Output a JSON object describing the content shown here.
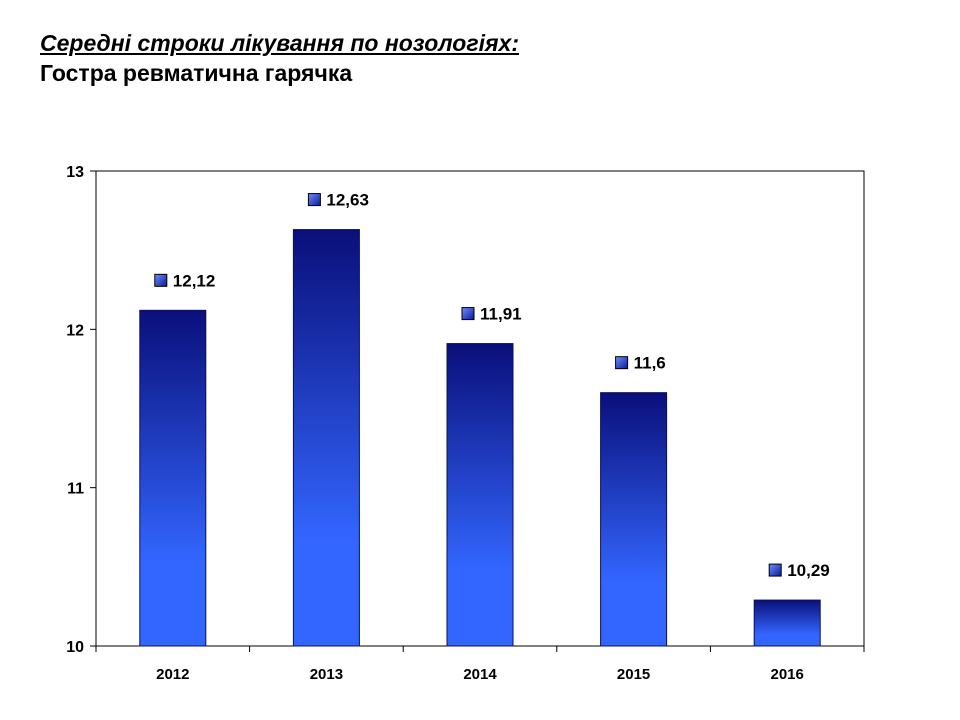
{
  "header": {
    "title": "Середні строки лікування по нозологіях:",
    "subtitle": "Гостра ревматична гарячка"
  },
  "colors": {
    "bar_top": "#0a0f7a",
    "bar_bottom": "#3366ff",
    "frame": "#000000"
  },
  "chart_data": {
    "type": "bar",
    "title": "",
    "xlabel": "",
    "ylabel": "",
    "categories": [
      "2012",
      "2013",
      "2014",
      "2015",
      "2016"
    ],
    "values": [
      12.12,
      12.63,
      11.91,
      11.6,
      10.29
    ],
    "data_labels": [
      "12,12",
      "12,63",
      "11,91",
      "11,6",
      "10,29"
    ],
    "ylim": [
      10,
      13
    ],
    "yticks": [
      10,
      11,
      12,
      13
    ],
    "grid": false,
    "legend": "none"
  }
}
